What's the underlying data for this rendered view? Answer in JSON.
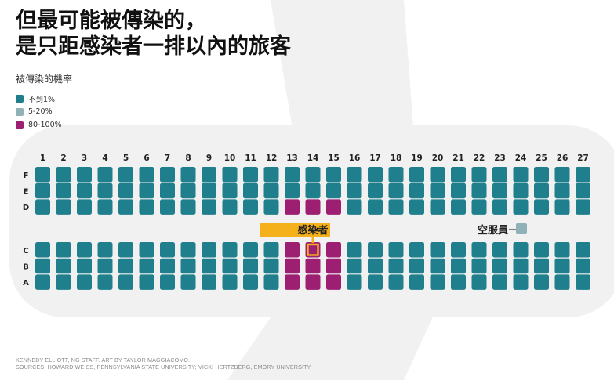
{
  "title_lines": [
    "但最可能被傳染的，",
    "是只距感染者一排以內的旅客"
  ],
  "legend": {
    "title": "被傳染的機率",
    "items": [
      {
        "label": "不到1%",
        "color": "#1f7f8c"
      },
      {
        "label": "5-20%",
        "color": "#8fb1b8"
      },
      {
        "label": "80-100%",
        "color": "#9c1f72"
      }
    ]
  },
  "colors": {
    "fuselage": "#f1f1f1",
    "low_risk": "#1f7f8c",
    "mid_risk": "#8fb1b8",
    "high_risk": "#9c1f72",
    "infected_highlight": "#f5b11b",
    "row_number_text": "#222222"
  },
  "cabin": {
    "rows": [
      1,
      2,
      3,
      4,
      5,
      6,
      7,
      8,
      9,
      10,
      11,
      12,
      13,
      14,
      15,
      16,
      17,
      18,
      19,
      20,
      21,
      22,
      23,
      24,
      25,
      26,
      27
    ],
    "upper_seat_letters": [
      "F",
      "E",
      "D"
    ],
    "lower_seat_letters": [
      "C",
      "B",
      "A"
    ],
    "high_risk_seats": [
      {
        "row": 13,
        "seat": "D"
      },
      {
        "row": 14,
        "seat": "D"
      },
      {
        "row": 15,
        "seat": "D"
      },
      {
        "row": 13,
        "seat": "C"
      },
      {
        "row": 14,
        "seat": "C"
      },
      {
        "row": 15,
        "seat": "C"
      },
      {
        "row": 13,
        "seat": "B"
      },
      {
        "row": 14,
        "seat": "B"
      },
      {
        "row": 15,
        "seat": "B"
      },
      {
        "row": 13,
        "seat": "A"
      },
      {
        "row": 14,
        "seat": "A"
      },
      {
        "row": 15,
        "seat": "A"
      }
    ],
    "infected_seat": {
      "row": 14,
      "seat": "C"
    },
    "infected_label": "感染者",
    "crew_label": "空服員",
    "crew_risk": "5-20%"
  },
  "credits": [
    "KENNEDY ELLIOTT, NG STAFF. ART BY TAYLOR MAGGIACOMO.",
    "SOURCES: HOWARD WEISS, PENNSYLVANIA STATE UNIVERSITY; VICKI HERTZBERG, EMORY UNIVERSITY"
  ]
}
